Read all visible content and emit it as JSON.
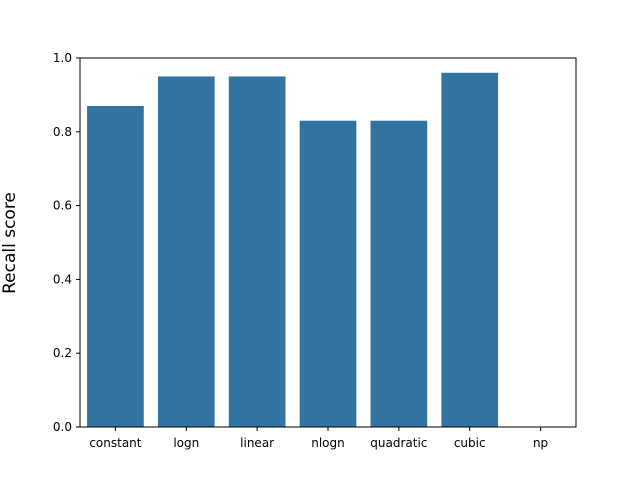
{
  "chart_data": {
    "type": "bar",
    "categories": [
      "constant",
      "logn",
      "linear",
      "nlogn",
      "quadratic",
      "cubic",
      "np"
    ],
    "values": [
      0.87,
      0.95,
      0.95,
      0.83,
      0.83,
      0.96,
      0.0
    ],
    "title": "",
    "xlabel": "",
    "ylabel": "Recall score",
    "ylim": [
      0.0,
      1.0
    ],
    "yticks": [
      "0.0",
      "0.2",
      "0.4",
      "0.6",
      "0.8",
      "1.0"
    ],
    "grid": false,
    "bar_color": "#3274a1"
  }
}
